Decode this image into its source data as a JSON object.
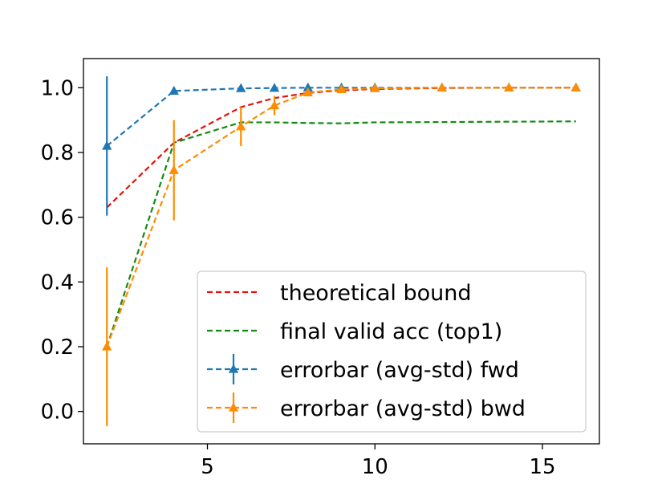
{
  "chart_data": {
    "type": "line",
    "title": "",
    "xlabel": "",
    "ylabel": "",
    "xlim": [
      1.3,
      16.7
    ],
    "ylim": [
      -0.1,
      1.09
    ],
    "x_ticks": [
      5,
      10,
      15
    ],
    "x_tick_labels": [
      "5",
      "10",
      "15"
    ],
    "y_ticks": [
      0.0,
      0.2,
      0.4,
      0.6,
      0.8,
      1.0
    ],
    "y_tick_labels": [
      "0.0",
      "0.2",
      "0.4",
      "0.6",
      "0.8",
      "1.0"
    ],
    "legend_position": "lower-right",
    "series": [
      {
        "name": "theoretical bound",
        "color": "#e3120b",
        "style": "dashed",
        "marker": "none",
        "x": [
          2,
          4,
          6,
          7,
          8,
          9,
          10,
          12,
          14,
          16
        ],
        "y": [
          0.63,
          0.83,
          0.94,
          0.968,
          0.984,
          0.992,
          0.996,
          0.999,
          1.0,
          1.0
        ]
      },
      {
        "name": "final valid acc (top1)",
        "color": "#138a13",
        "style": "dashed",
        "marker": "none",
        "x": [
          2,
          4,
          6,
          7,
          8,
          9,
          10,
          12,
          14,
          16
        ],
        "y": [
          0.2,
          0.83,
          0.893,
          0.893,
          0.891,
          0.89,
          0.893,
          0.894,
          0.895,
          0.896
        ]
      },
      {
        "name": "errorbar (avg-std) fwd",
        "color": "#1f77b4",
        "style": "dashed",
        "marker": "triangle",
        "x": [
          2,
          4,
          6,
          7,
          8,
          9,
          10,
          12,
          14,
          16
        ],
        "y": [
          0.82,
          0.99,
          0.998,
          0.999,
          1.0,
          1.0,
          1.0,
          1.0,
          1.0,
          1.0
        ],
        "err": [
          0.215,
          0.005,
          0.002,
          0.0,
          0.0,
          0.0,
          0.0,
          0.0,
          0.0,
          0.0
        ]
      },
      {
        "name": "errorbar (avg-std) bwd",
        "color": "#ff8c00",
        "style": "dashed",
        "marker": "triangle",
        "x": [
          2,
          4,
          6,
          7,
          8,
          9,
          10,
          12,
          14,
          16
        ],
        "y": [
          0.2,
          0.745,
          0.88,
          0.945,
          0.985,
          0.995,
          0.998,
          1.0,
          1.0,
          1.0
        ],
        "err": [
          0.245,
          0.155,
          0.06,
          0.03,
          0.012,
          0.006,
          0.003,
          0.0,
          0.0,
          0.0
        ]
      }
    ]
  }
}
